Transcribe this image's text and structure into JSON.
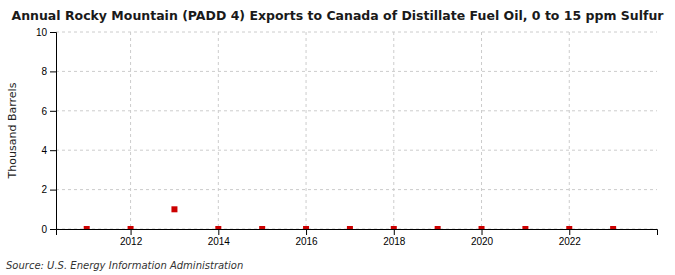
{
  "chart_data": {
    "type": "scatter",
    "title": "Annual Rocky Mountain (PADD 4) Exports to Canada of Distillate Fuel Oil, 0 to 15 ppm Sulfur",
    "ylabel": "Thousand Barrels",
    "source": "Source: U.S. Energy Information Administration",
    "x": [
      2011,
      2012,
      2013,
      2014,
      2015,
      2016,
      2017,
      2018,
      2019,
      2020,
      2021,
      2022,
      2023
    ],
    "values": [
      0.0,
      0.0,
      1.0,
      0.0,
      0.0,
      0.0,
      0.0,
      0.0,
      0.0,
      0.0,
      0.0,
      0.0,
      0.0
    ],
    "color": "#cc0000",
    "marker": "square",
    "xlim": [
      2010.3,
      2024.0
    ],
    "ylim": [
      0,
      10
    ],
    "xticks": [
      2012,
      2014,
      2016,
      2018,
      2020,
      2022
    ],
    "yticks": [
      0,
      2,
      4,
      6,
      8,
      10
    ],
    "grid": true
  }
}
